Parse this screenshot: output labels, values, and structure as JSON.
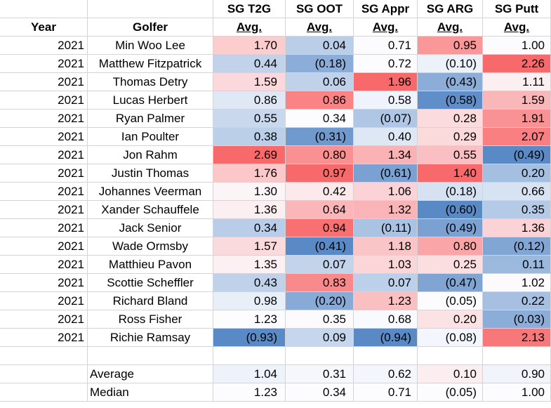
{
  "headers": {
    "row1": [
      "",
      "",
      "SG T2G",
      "SG OOT",
      "SG Appr",
      "SG ARG",
      "SG Putt"
    ],
    "row2": [
      "Year",
      "Golfer",
      "Avg.",
      "Avg.",
      "Avg.",
      "Avg.",
      "Avg."
    ]
  },
  "rows": [
    {
      "year": "2021",
      "golfer": "Min Woo Lee",
      "t2g": "1.70",
      "oot": "0.04",
      "appr": "0.71",
      "arg": "0.95",
      "putt": "1.00"
    },
    {
      "year": "2021",
      "golfer": "Matthew Fitzpatrick",
      "t2g": "0.44",
      "oot": "(0.18)",
      "appr": "0.72",
      "arg": "(0.10)",
      "putt": "2.26"
    },
    {
      "year": "2021",
      "golfer": "Thomas Detry",
      "t2g": "1.59",
      "oot": "0.06",
      "appr": "1.96",
      "arg": "(0.43)",
      "putt": "1.11"
    },
    {
      "year": "2021",
      "golfer": "Lucas Herbert",
      "t2g": "0.86",
      "oot": "0.86",
      "appr": "0.58",
      "arg": "(0.58)",
      "putt": "1.59"
    },
    {
      "year": "2021",
      "golfer": "Ryan Palmer",
      "t2g": "0.55",
      "oot": "0.34",
      "appr": "(0.07)",
      "arg": "0.28",
      "putt": "1.91"
    },
    {
      "year": "2021",
      "golfer": "Ian Poulter",
      "t2g": "0.38",
      "oot": "(0.31)",
      "appr": "0.40",
      "arg": "0.29",
      "putt": "2.07"
    },
    {
      "year": "2021",
      "golfer": "Jon Rahm",
      "t2g": "2.69",
      "oot": "0.80",
      "appr": "1.34",
      "arg": "0.55",
      "putt": "(0.49)"
    },
    {
      "year": "2021",
      "golfer": "Justin Thomas",
      "t2g": "1.76",
      "oot": "0.97",
      "appr": "(0.61)",
      "arg": "1.40",
      "putt": "0.20"
    },
    {
      "year": "2021",
      "golfer": "Johannes Veerman",
      "t2g": "1.30",
      "oot": "0.42",
      "appr": "1.06",
      "arg": "(0.18)",
      "putt": "0.66"
    },
    {
      "year": "2021",
      "golfer": "Xander Schauffele",
      "t2g": "1.36",
      "oot": "0.64",
      "appr": "1.32",
      "arg": "(0.60)",
      "putt": "0.35"
    },
    {
      "year": "2021",
      "golfer": "Jack Senior",
      "t2g": "0.34",
      "oot": "0.94",
      "appr": "(0.11)",
      "arg": "(0.49)",
      "putt": "1.36"
    },
    {
      "year": "2021",
      "golfer": "Wade Ormsby",
      "t2g": "1.57",
      "oot": "(0.41)",
      "appr": "1.18",
      "arg": "0.80",
      "putt": "(0.12)"
    },
    {
      "year": "2021",
      "golfer": "Matthieu Pavon",
      "t2g": "1.35",
      "oot": "0.07",
      "appr": "1.03",
      "arg": "0.25",
      "putt": "0.11"
    },
    {
      "year": "2021",
      "golfer": "Scottie Scheffler",
      "t2g": "0.43",
      "oot": "0.83",
      "appr": "0.07",
      "arg": "(0.47)",
      "putt": "1.02"
    },
    {
      "year": "2021",
      "golfer": "Richard Bland",
      "t2g": "0.98",
      "oot": "(0.20)",
      "appr": "1.23",
      "arg": "(0.05)",
      "putt": "0.22"
    },
    {
      "year": "2021",
      "golfer": "Ross Fisher",
      "t2g": "1.23",
      "oot": "0.35",
      "appr": "0.68",
      "arg": "0.20",
      "putt": "(0.03)"
    },
    {
      "year": "2021",
      "golfer": "Richie Ramsay",
      "t2g": "(0.93)",
      "oot": "0.09",
      "appr": "(0.94)",
      "arg": "(0.08)",
      "putt": "2.13"
    }
  ],
  "summary": [
    {
      "label": "Average",
      "t2g": "1.04",
      "oot": "0.31",
      "appr": "0.62",
      "arg": "0.10",
      "putt": "0.90"
    },
    {
      "label": "Median",
      "t2g": "1.23",
      "oot": "0.34",
      "appr": "0.71",
      "arg": "(0.05)",
      "putt": "1.00"
    }
  ],
  "colors": {
    "positive": "#f8696b",
    "neutral": "#fcfcff",
    "negative": "#5a8ac6"
  }
}
